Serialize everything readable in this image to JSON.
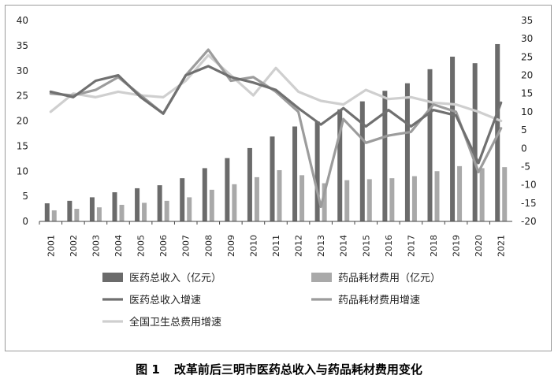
{
  "caption": {
    "figure_number": "图 1",
    "title": "改革前后三明市医药总收入与药品耗材费用变化"
  },
  "colors": {
    "revenue_bar": "#6b6b6b",
    "drug_bar": "#a9a9a9",
    "revenue_growth_line": "#707070",
    "drug_growth_line": "#9c9c9c",
    "national_growth_line": "#cfcfcf",
    "axis": "#444444"
  },
  "chart_data": {
    "type": "bar",
    "title": "",
    "categories": [
      "2001",
      "2002",
      "2003",
      "2004",
      "2005",
      "2006",
      "2007",
      "2008",
      "2009",
      "2010",
      "2011",
      "2012",
      "2013",
      "2014",
      "2015",
      "2016",
      "2017",
      "2018",
      "2019",
      "2020",
      "2021"
    ],
    "ylim_left": [
      0,
      40
    ],
    "yticks_left": [
      "0",
      "5",
      "10",
      "15",
      "20",
      "25",
      "30",
      "35",
      "40"
    ],
    "ylim_right": [
      -20,
      35
    ],
    "yticks_right": [
      "-20",
      "-15",
      "-10",
      "-5",
      "0",
      "5",
      "10",
      "15",
      "20",
      "25",
      "30",
      "35"
    ],
    "grid": false,
    "legend_position": "bottom",
    "series": [
      {
        "name": "医药总收入（亿元）",
        "kind": "bar",
        "axis": "left",
        "values": [
          3.6,
          4.1,
          4.8,
          5.8,
          6.6,
          7.2,
          8.6,
          10.6,
          12.6,
          14.6,
          16.9,
          18.9,
          19.9,
          22.3,
          23.9,
          26.0,
          27.5,
          30.3,
          32.8,
          31.5,
          35.3
        ]
      },
      {
        "name": "药品耗材费用（亿元）",
        "kind": "bar",
        "axis": "left",
        "values": [
          2.2,
          2.5,
          2.8,
          3.3,
          3.7,
          4.1,
          4.8,
          6.3,
          7.4,
          8.8,
          10.2,
          9.2,
          7.6,
          8.2,
          8.4,
          8.6,
          9.0,
          10.0,
          11.0,
          10.6,
          10.8
        ]
      },
      {
        "name": "医药总收入增速",
        "kind": "line",
        "axis": "right",
        "values": [
          15.5,
          14.0,
          18.5,
          20.0,
          14.0,
          9.5,
          20.0,
          22.5,
          19.5,
          18.0,
          16.0,
          11.0,
          6.5,
          11.0,
          6.0,
          10.5,
          6.0,
          10.5,
          9.0,
          -4.0,
          12.5
        ]
      },
      {
        "name": "药品耗材费用增速",
        "kind": "line",
        "axis": "right",
        "values": [
          15.0,
          14.5,
          16.0,
          19.5,
          14.5,
          9.5,
          20.0,
          27.0,
          18.5,
          19.5,
          15.5,
          10.0,
          -16.0,
          8.0,
          1.5,
          3.5,
          4.5,
          12.0,
          10.0,
          -6.5,
          5.5
        ]
      },
      {
        "name": "全国卫生总费用增速",
        "kind": "line",
        "axis": "right",
        "values": [
          10.0,
          15.0,
          14.0,
          15.5,
          14.5,
          14.0,
          18.5,
          25.5,
          20.0,
          14.5,
          22.0,
          15.5,
          13.0,
          12.0,
          16.0,
          13.5,
          14.0,
          12.5,
          12.0,
          10.0,
          7.5
        ]
      }
    ]
  }
}
